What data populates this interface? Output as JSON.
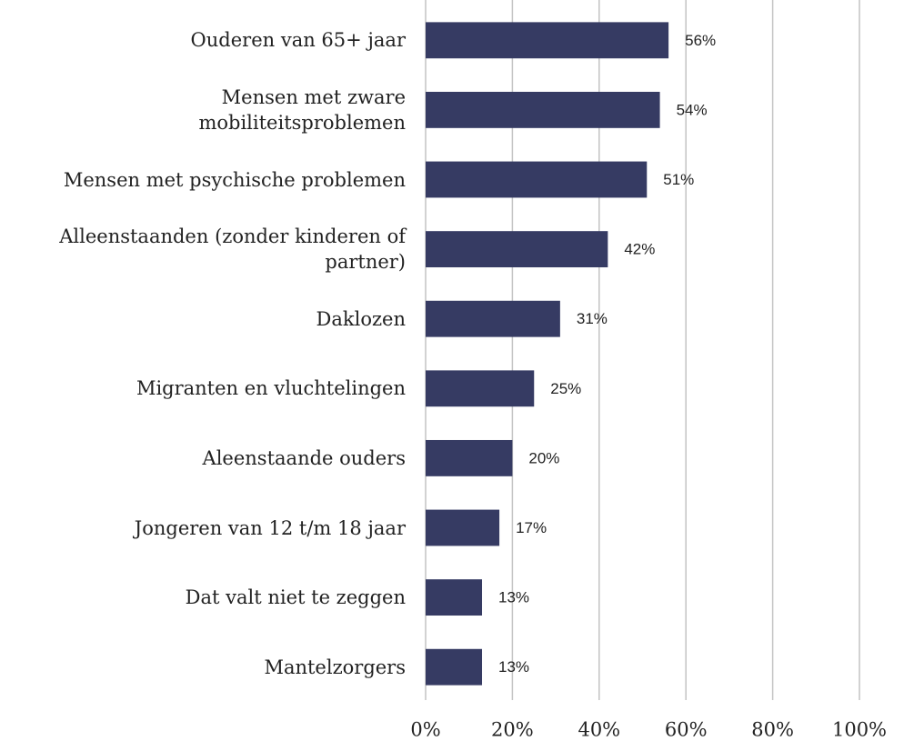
{
  "chart_data": {
    "type": "bar",
    "orientation": "horizontal",
    "categories": [
      "Ouderen van 65+ jaar",
      "Mensen met zware mobiliteitsproblemen",
      "Mensen met psychische problemen",
      "Alleenstaanden (zonder kinderen of partner)",
      "Daklozen",
      "Migranten en vluchtelingen",
      "Aleenstaande ouders",
      "Jongeren van 12 t/m 18 jaar",
      "Dat valt niet te zeggen",
      "Mantelzorgers"
    ],
    "values": [
      56,
      54,
      51,
      42,
      31,
      25,
      20,
      17,
      13,
      13
    ],
    "value_labels": [
      "56%",
      "54%",
      "51%",
      "42%",
      "31%",
      "25%",
      "20%",
      "17%",
      "13%",
      "13%"
    ],
    "color": "#363b63",
    "xlim": [
      0,
      100
    ],
    "xticks": [
      {
        "value": 0,
        "label": "0%"
      },
      {
        "value": 20,
        "label": "20%"
      },
      {
        "value": 40,
        "label": "40%"
      },
      {
        "value": 60,
        "label": "60%"
      },
      {
        "value": 80,
        "label": "80%"
      },
      {
        "value": 100,
        "label": "100%"
      }
    ],
    "grid": true
  }
}
